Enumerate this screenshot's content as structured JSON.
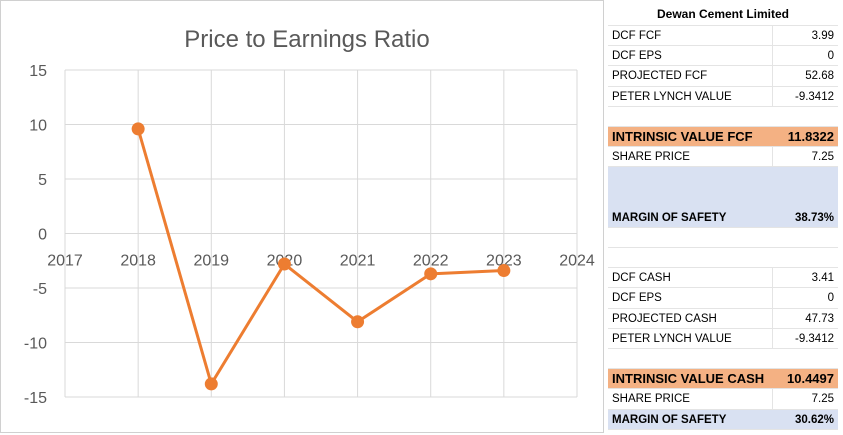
{
  "chart_data": {
    "type": "line",
    "title": "Price to Earnings Ratio",
    "x": [
      2018,
      2019,
      2020,
      2021,
      2022,
      2023
    ],
    "series": [
      {
        "name": "Price to Earnings Ratio",
        "values": [
          9.6,
          -13.8,
          -2.8,
          -8.1,
          -3.7,
          -3.4
        ]
      }
    ],
    "xlim": [
      2017,
      2024
    ],
    "ylim": [
      -15,
      15
    ],
    "xticks": [
      "2017",
      "2018",
      "2019",
      "2020",
      "2021",
      "2022",
      "2023",
      "2024"
    ],
    "yticks": [
      "15",
      "10",
      "5",
      "0",
      "-5",
      "-10",
      "-15"
    ],
    "xlabel": "",
    "ylabel": "",
    "grid": true,
    "colors": {
      "line": "#ed7d31",
      "grid": "#d9d9d9",
      "text": "#595959"
    }
  },
  "table": {
    "title": "Dewan Cement Limited",
    "fcf_section": [
      {
        "label": "DCF FCF",
        "value": "3.99"
      },
      {
        "label": "DCF EPS",
        "value": "0"
      },
      {
        "label": "PROJECTED FCF",
        "value": "52.68"
      },
      {
        "label": "PETER LYNCH VALUE",
        "value": "-9.3412"
      }
    ],
    "intrinsic_fcf": {
      "label": "INTRINSIC VALUE FCF",
      "value": "11.8322"
    },
    "share_price_1": {
      "label": "SHARE PRICE",
      "value": "7.25"
    },
    "margin_1": {
      "label": "MARGIN OF SAFETY",
      "value": "38.73%"
    },
    "cash_section": [
      {
        "label": "DCF CASH",
        "value": "3.41"
      },
      {
        "label": "DCF EPS",
        "value": "0"
      },
      {
        "label": "PROJECTED CASH",
        "value": "47.73"
      },
      {
        "label": "PETER LYNCH VALUE",
        "value": "-9.3412"
      }
    ],
    "intrinsic_cash": {
      "label": "INTRINSIC VALUE CASH",
      "value": "10.4497"
    },
    "share_price_2": {
      "label": "SHARE PRICE",
      "value": "7.25"
    },
    "margin_2": {
      "label": "MARGIN OF SAFETY",
      "value": "30.62%"
    },
    "colors": {
      "orange": "#f4b183",
      "blue": "#d9e1f2"
    }
  }
}
